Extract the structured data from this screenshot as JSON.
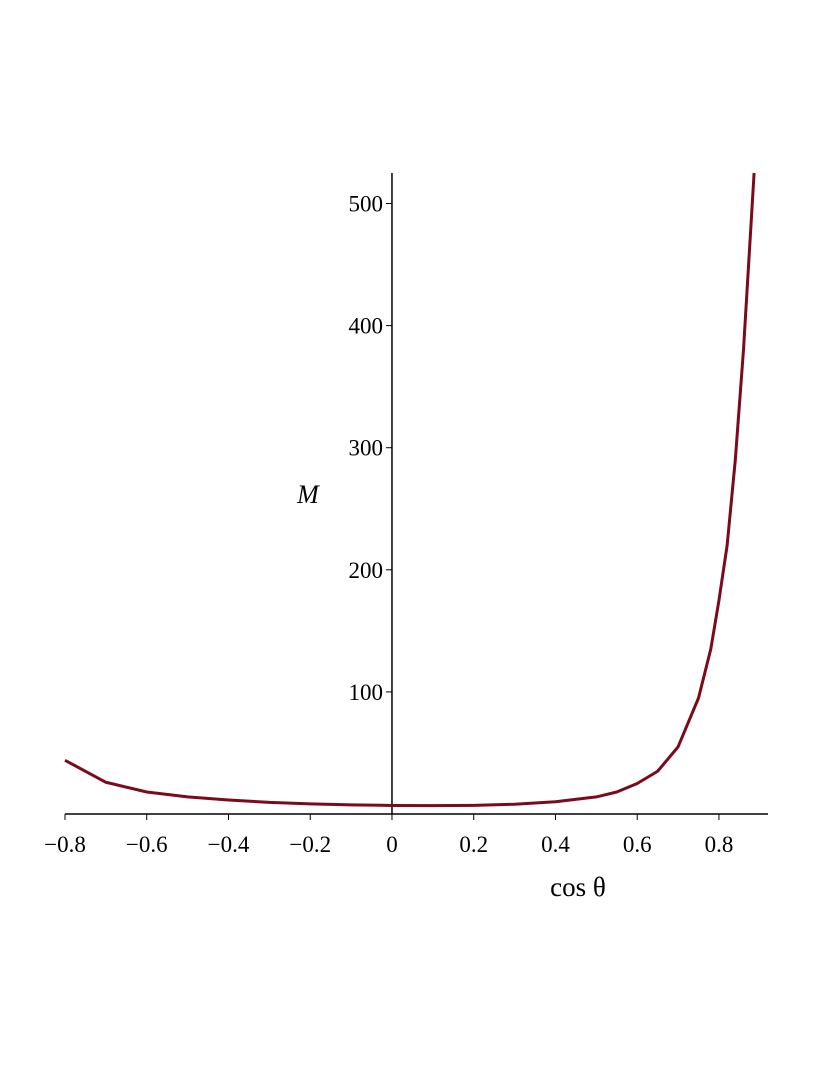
{
  "chart_data": {
    "type": "line",
    "x_label": "cos θ",
    "y_label": "M",
    "x": [
      -0.8,
      -0.7,
      -0.6,
      -0.5,
      -0.4,
      -0.3,
      -0.2,
      -0.1,
      0,
      0.1,
      0.2,
      0.3,
      0.4,
      0.5,
      0.55,
      0.6,
      0.65,
      0.7,
      0.75,
      0.78,
      0.8,
      0.82,
      0.84,
      0.86,
      0.886
    ],
    "values": [
      44,
      26,
      18,
      14,
      11.5,
      9.5,
      8.3,
      7.5,
      7,
      6.9,
      7.1,
      8,
      10,
      14,
      18,
      25,
      35,
      55,
      95,
      135,
      175,
      220,
      290,
      380,
      525
    ],
    "color": "#7b0a1a",
    "xlim": [
      -0.8,
      0.92
    ],
    "ylim": [
      0,
      525
    ],
    "xticks": [
      {
        "value": -0.8,
        "label": "−0.8"
      },
      {
        "value": -0.6,
        "label": "−0.6"
      },
      {
        "value": -0.4,
        "label": "−0.4"
      },
      {
        "value": -0.2,
        "label": "−0.2"
      },
      0,
      0.2,
      0.4,
      0.6,
      0.8
    ],
    "yticks": [
      100,
      200,
      300,
      400,
      500
    ]
  }
}
